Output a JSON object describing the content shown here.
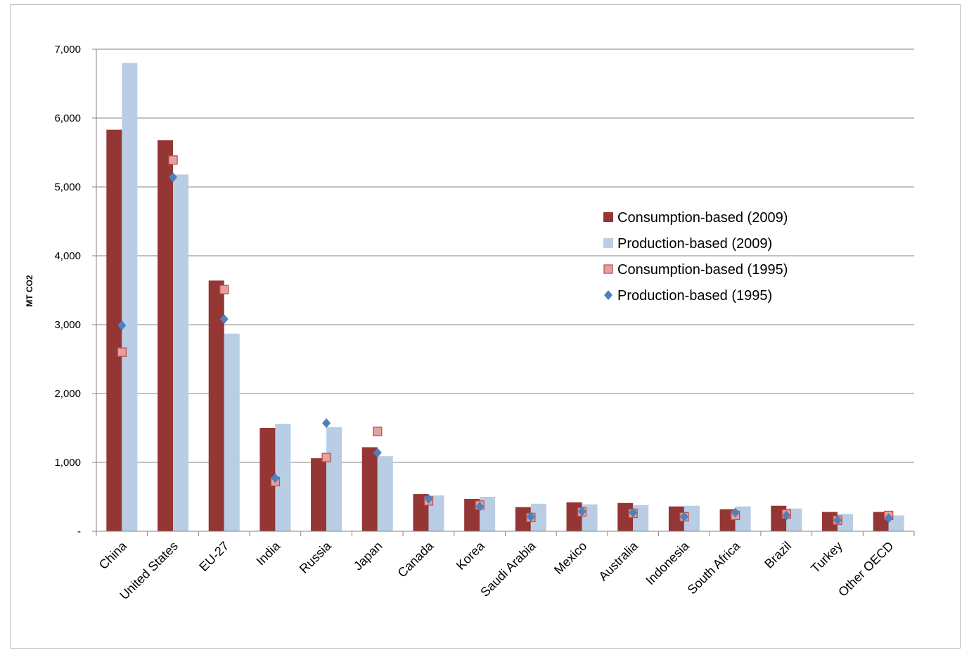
{
  "chart_data": {
    "type": "bar",
    "ylabel": "MT CO2",
    "xlabel": "",
    "title": "",
    "ylim": [
      0,
      7000
    ],
    "yticks": [
      0,
      1000,
      2000,
      3000,
      4000,
      5000,
      6000,
      7000
    ],
    "ytick_labels": [
      "-",
      "1,000",
      "2,000",
      "3,000",
      "4,000",
      "5,000",
      "6,000",
      "7,000"
    ],
    "grid": true,
    "legend_position": "right",
    "categories": [
      "China",
      "United States",
      "EU-27",
      "India",
      "Russia",
      "Japan",
      "Canada",
      "Korea",
      "Saudi Arabia",
      "Mexico",
      "Australia",
      "Indonesia",
      "South Africa",
      "Brazil",
      "Turkey",
      "Other OECD"
    ],
    "series": [
      {
        "name": "Consumption-based (2009)",
        "kind": "bar",
        "color": "#943634",
        "values": [
          5830,
          5680,
          3640,
          1500,
          1060,
          1220,
          540,
          470,
          350,
          420,
          410,
          360,
          320,
          370,
          280,
          280
        ]
      },
      {
        "name": "Production-based (2009)",
        "kind": "bar",
        "color": "#b9cde5",
        "values": [
          6800,
          5180,
          2870,
          1560,
          1510,
          1090,
          520,
          500,
          400,
          390,
          380,
          370,
          360,
          330,
          250,
          230
        ]
      },
      {
        "name": "Consumption-based (1995)",
        "kind": "marker",
        "marker": "square",
        "color": "#e6a09e",
        "edge_color": "#c0504d",
        "values": [
          2600,
          5390,
          3510,
          720,
          1070,
          1450,
          440,
          380,
          200,
          280,
          260,
          210,
          230,
          250,
          160,
          230
        ]
      },
      {
        "name": "Production-based (1995)",
        "kind": "marker",
        "marker": "diamond",
        "color": "#4f81bd",
        "values": [
          2990,
          5140,
          3080,
          770,
          1570,
          1140,
          470,
          360,
          210,
          290,
          270,
          210,
          270,
          230,
          160,
          190
        ]
      }
    ]
  }
}
